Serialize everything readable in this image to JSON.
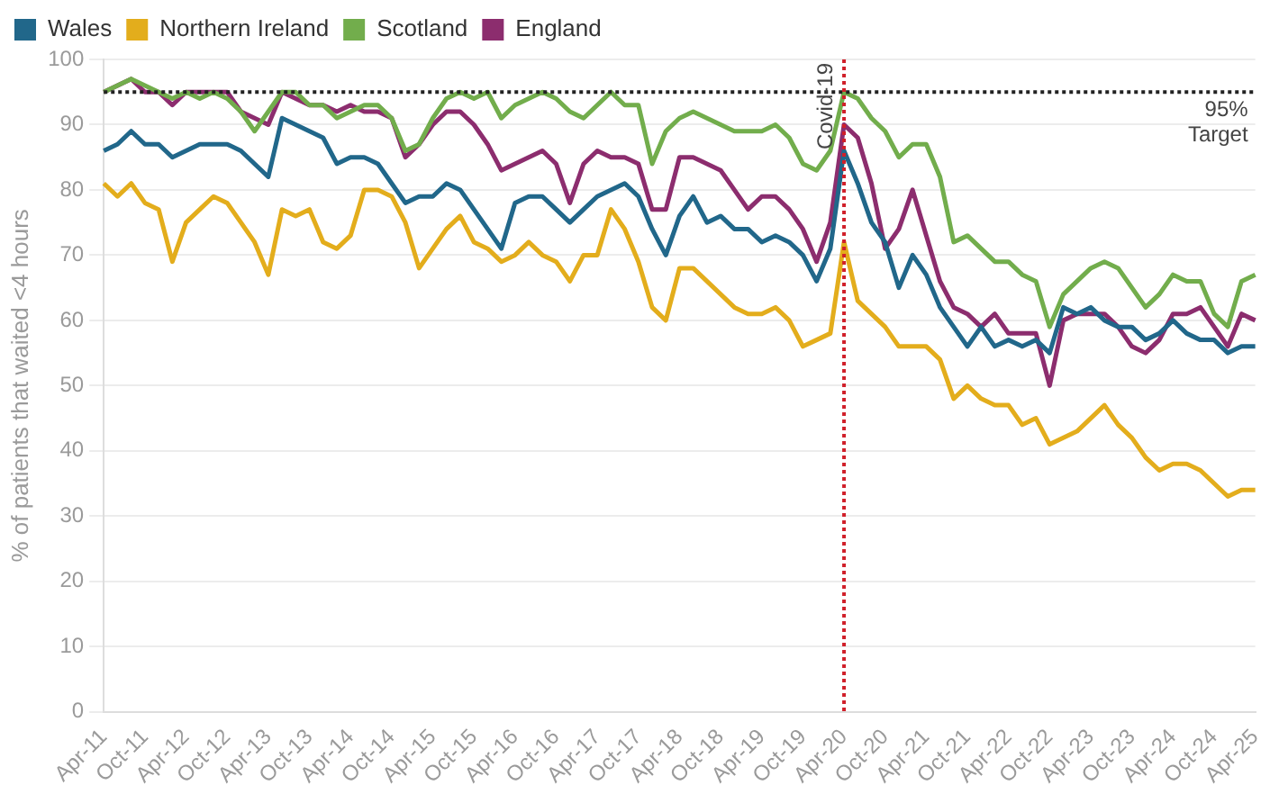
{
  "chart_data": {
    "type": "line",
    "ylabel": "% of patients that waited <4 hours",
    "categories": [
      "Apr-11",
      null,
      null,
      "Oct-11",
      null,
      null,
      "Apr-12",
      null,
      null,
      "Oct-12",
      null,
      null,
      "Apr-13",
      null,
      null,
      "Oct-13",
      null,
      null,
      "Apr-14",
      null,
      null,
      "Oct-14",
      null,
      null,
      "Apr-15",
      null,
      null,
      "Oct-15",
      null,
      null,
      "Apr-16",
      null,
      null,
      "Oct-16",
      null,
      null,
      "Apr-17",
      null,
      null,
      "Oct-17",
      null,
      null,
      "Apr-18",
      null,
      null,
      "Oct-18",
      null,
      null,
      "Apr-19",
      null,
      null,
      "Oct-19",
      null,
      null,
      "Apr-20",
      null,
      null,
      "Oct-20",
      null,
      null,
      "Apr-21",
      null,
      null,
      "Oct-21",
      null,
      null,
      "Apr-22",
      null,
      null,
      "Oct-22",
      null,
      null,
      "Apr-23",
      null,
      null,
      "Oct-23",
      null,
      null,
      "Apr-24",
      null,
      null,
      "Oct-24",
      null,
      null,
      "Apr-25"
    ],
    "series": [
      {
        "name": "Wales",
        "color": "#21678a",
        "values": [
          86,
          87,
          89,
          87,
          87,
          85,
          86,
          87,
          87,
          87,
          86,
          84,
          82,
          91,
          90,
          89,
          88,
          84,
          85,
          85,
          84,
          81,
          78,
          79,
          79,
          81,
          80,
          77,
          74,
          71,
          78,
          79,
          79,
          77,
          75,
          77,
          79,
          80,
          81,
          79,
          74,
          70,
          76,
          79,
          75,
          76,
          74,
          74,
          72,
          73,
          72,
          70,
          66,
          71,
          86,
          81,
          75,
          72,
          65,
          70,
          67,
          62,
          59,
          56,
          59,
          56,
          57,
          56,
          57,
          55,
          62,
          61,
          62,
          60,
          59,
          59,
          57,
          58,
          60,
          58,
          57,
          57,
          55,
          56,
          56
        ]
      },
      {
        "name": "Northern Ireland",
        "color": "#e3ad1c",
        "values": [
          81,
          79,
          81,
          78,
          77,
          69,
          75,
          77,
          79,
          78,
          75,
          72,
          67,
          77,
          76,
          77,
          72,
          71,
          73,
          80,
          80,
          79,
          75,
          68,
          71,
          74,
          76,
          72,
          71,
          69,
          70,
          72,
          70,
          69,
          66,
          70,
          70,
          77,
          74,
          69,
          62,
          60,
          68,
          68,
          66,
          64,
          62,
          61,
          61,
          62,
          60,
          56,
          57,
          58,
          72,
          63,
          61,
          59,
          56,
          56,
          56,
          54,
          48,
          50,
          48,
          47,
          47,
          44,
          45,
          41,
          42,
          43,
          45,
          47,
          44,
          42,
          39,
          37,
          38,
          38,
          37,
          35,
          33,
          34,
          34
        ]
      },
      {
        "name": "Scotland",
        "color": "#72ad4c",
        "values": [
          95,
          96,
          97,
          96,
          95,
          94,
          95,
          94,
          95,
          94,
          92,
          89,
          92,
          95,
          95,
          93,
          93,
          91,
          92,
          93,
          93,
          91,
          86,
          87,
          91,
          94,
          95,
          94,
          95,
          91,
          93,
          94,
          95,
          94,
          92,
          91,
          93,
          95,
          93,
          93,
          84,
          89,
          91,
          92,
          91,
          90,
          89,
          89,
          89,
          90,
          88,
          84,
          83,
          86,
          95,
          94,
          91,
          89,
          85,
          87,
          87,
          82,
          72,
          73,
          71,
          69,
          69,
          67,
          66,
          59,
          64,
          66,
          68,
          69,
          68,
          65,
          62,
          64,
          67,
          66,
          66,
          61,
          59,
          66,
          67
        ]
      },
      {
        "name": "England",
        "color": "#8c2d6e",
        "values": [
          95,
          96,
          97,
          95,
          95,
          93,
          95,
          95,
          95,
          95,
          92,
          91,
          90,
          95,
          94,
          93,
          93,
          92,
          93,
          92,
          92,
          91,
          85,
          87,
          90,
          92,
          92,
          90,
          87,
          83,
          84,
          85,
          86,
          84,
          78,
          84,
          86,
          85,
          85,
          84,
          77,
          77,
          85,
          85,
          84,
          83,
          80,
          77,
          79,
          79,
          77,
          74,
          69,
          75,
          90,
          88,
          81,
          71,
          74,
          80,
          73,
          66,
          62,
          61,
          59,
          61,
          58,
          58,
          58,
          50,
          60,
          61,
          61,
          61,
          59,
          56,
          55,
          57,
          61,
          61,
          62,
          59,
          56,
          61,
          60
        ]
      }
    ],
    "ylim": [
      0,
      100
    ],
    "yticks": [
      0,
      10,
      20,
      30,
      40,
      50,
      60,
      70,
      80,
      90,
      100
    ],
    "grid": "y",
    "legend": "top left",
    "marker": "none",
    "line_style": "solid",
    "ref_lines": [
      {
        "axis": "y",
        "value": 95,
        "label": "95% Target",
        "color": "#222222",
        "line_style": "dotted"
      },
      {
        "axis": "x",
        "value": "Apr-20",
        "label": "Covid-19",
        "color": "#d0202a",
        "line_style": "dotted"
      }
    ]
  }
}
